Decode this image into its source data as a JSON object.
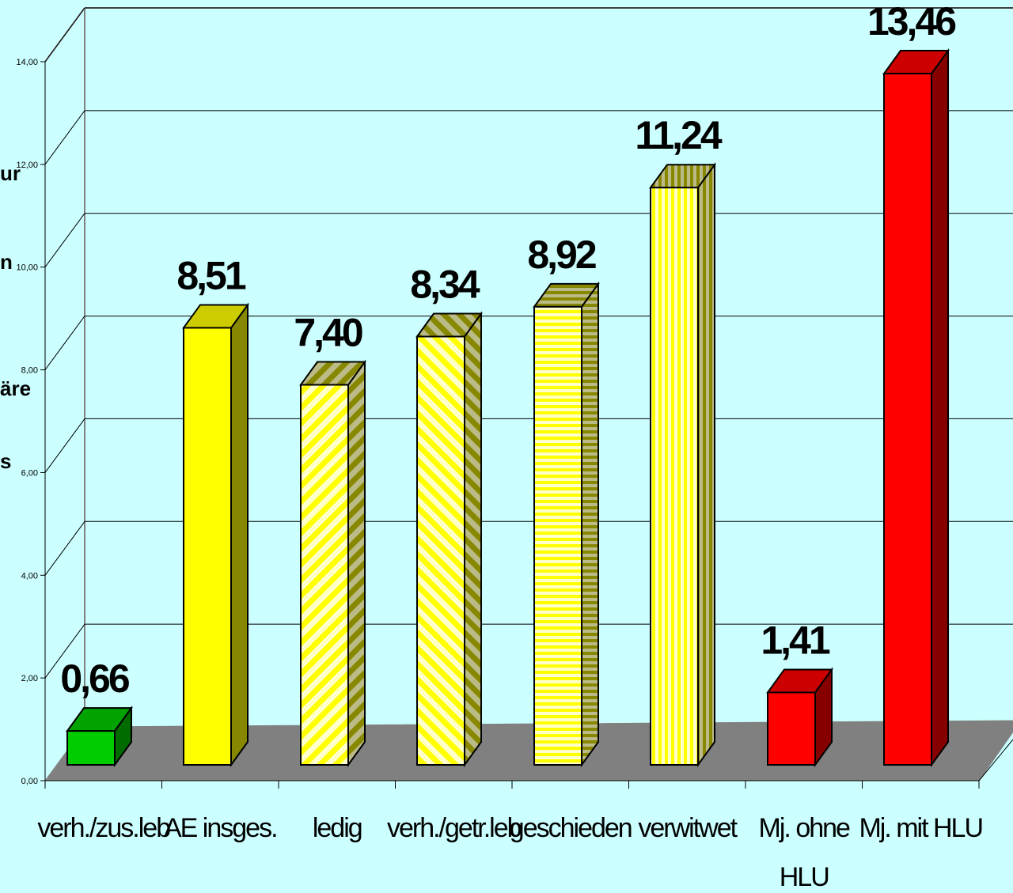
{
  "chart_data": {
    "type": "bar",
    "categories": [
      "verh./zus.leb",
      "AE insges.",
      "ledig",
      "verh./getr.leb",
      "geschieden",
      "verwitwet",
      "Mj. ohne HLU",
      "Mj. mit HLU"
    ],
    "values": [
      0.66,
      8.51,
      7.4,
      8.34,
      8.92,
      11.24,
      1.41,
      13.46
    ],
    "value_labels": [
      "0,66",
      "8,51",
      "7,40",
      "8,34",
      "8,92",
      "11,24",
      "1,41",
      "13,46"
    ],
    "ylim": [
      0,
      14
    ],
    "ytick_labels": [
      "0,00",
      "2,00",
      "4,00",
      "6,00",
      "8,00",
      "10,00",
      "12,00",
      "14,00"
    ],
    "ylabel_fragments": [
      "ur",
      "n",
      "äre",
      "s"
    ],
    "grid": true,
    "bar_colors": [
      "#00cc00",
      "#ffff00",
      "#ffff00",
      "#ffff00",
      "#ffff00",
      "#ffff00",
      "#ff0000",
      "#ff0000"
    ],
    "bar_patterns": [
      "solid",
      "solid",
      "diag-up",
      "diag-down",
      "horizontal",
      "vertical",
      "solid",
      "solid"
    ],
    "colors": {
      "background": "#ccffff",
      "floor": "#808080"
    }
  }
}
